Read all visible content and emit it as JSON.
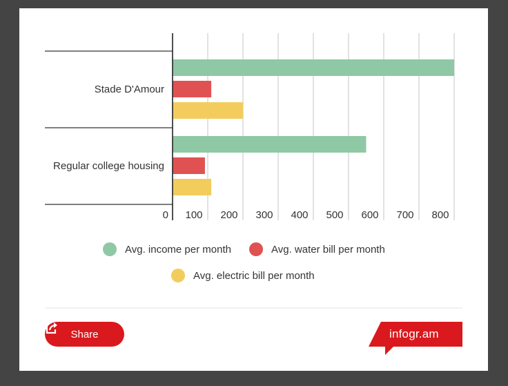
{
  "chart_data": {
    "type": "bar",
    "orientation": "horizontal",
    "categories": [
      "Stade D'Amour",
      "Regular college housing"
    ],
    "series": [
      {
        "name": "Avg. income per month",
        "color": "#8fc8a5",
        "values": [
          800,
          550
        ]
      },
      {
        "name": "Avg. water bill per month",
        "color": "#e05252",
        "values": [
          110,
          92
        ]
      },
      {
        "name": "Avg. electric bill per month",
        "color": "#f2cd5e",
        "values": [
          200,
          110
        ]
      }
    ],
    "xlim": [
      0,
      800
    ],
    "xticks": [
      "0",
      "100",
      "200",
      "300",
      "400",
      "500",
      "600",
      "700",
      "800"
    ],
    "grid": true,
    "legend": "bottom",
    "title": "",
    "xlabel": "",
    "ylabel": ""
  },
  "footer": {
    "share_label": "Share",
    "brand_label": "infogr.am",
    "brand_color": "#d9191d"
  }
}
